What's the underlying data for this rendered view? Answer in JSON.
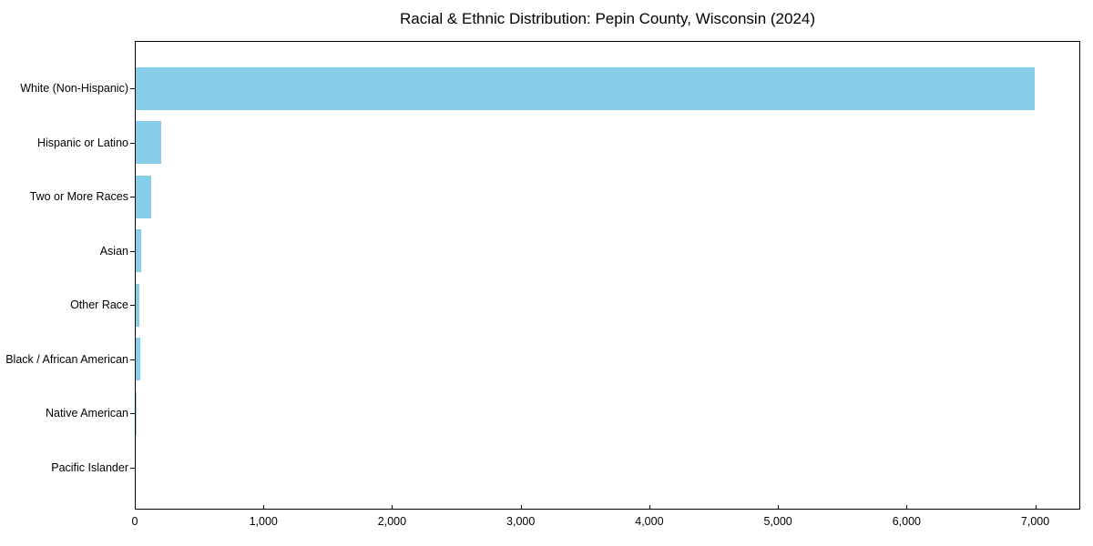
{
  "chart_data": {
    "type": "bar",
    "orientation": "horizontal",
    "title": "Racial & Ethnic Distribution: Pepin County, Wisconsin (2024)",
    "categories": [
      "White (Non-Hispanic)",
      "Hispanic or Latino",
      "Two or More Races",
      "Asian",
      "Other Race",
      "Black / African American",
      "Native American",
      "Pacific Islander"
    ],
    "values": [
      7000,
      200,
      120,
      45,
      30,
      35,
      10,
      0
    ],
    "xlabel": "",
    "ylabel": "",
    "xlim": [
      0,
      7350
    ],
    "xticks": [
      0,
      1000,
      2000,
      3000,
      4000,
      5000,
      6000,
      7000
    ],
    "xtick_labels": [
      "0",
      "1,000",
      "2,000",
      "3,000",
      "4,000",
      "5,000",
      "6,000",
      "7,000"
    ],
    "bar_color": "#87CEEB",
    "axis_color": "#000000",
    "text_color": "#000000",
    "background_color": "#ffffff",
    "grid": false,
    "legend": null
  }
}
